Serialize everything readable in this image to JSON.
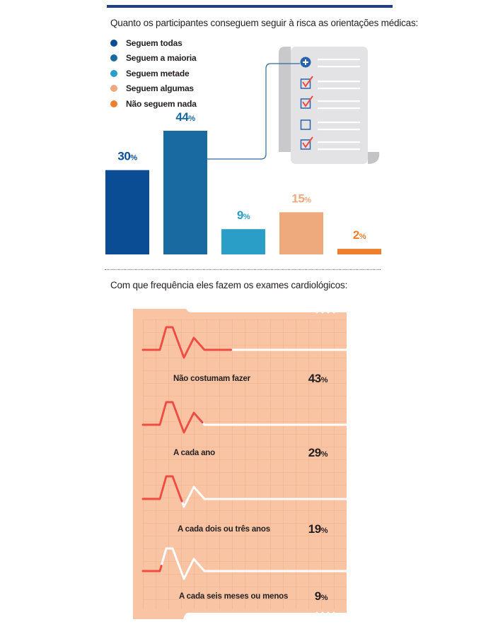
{
  "chart_data": [
    {
      "type": "bar",
      "title": "Quanto os participantes conseguem seguir à risca as orientações médicas:",
      "categories": [
        "Seguem todas",
        "Seguem a maioria",
        "Seguem metade",
        "Seguem algumas",
        "Não seguem nada"
      ],
      "values": [
        30,
        44,
        9,
        15,
        2
      ],
      "value_labels": [
        "30",
        "44",
        "9",
        "15",
        "2"
      ],
      "unit": "%",
      "colors": [
        "#0a4d94",
        "#1a6aa2",
        "#2a9ec7",
        "#eea97c",
        "#ee7f2c"
      ],
      "legend_position": "top-left",
      "ylim": [
        0,
        44
      ],
      "grid": false
    },
    {
      "type": "bar",
      "title": "Com que frequência eles fazem os exames cardiológicos:",
      "categories": [
        "Não costumam fazer",
        "A cada ano",
        "A cada dois ou três anos",
        "A cada seis meses ou menos"
      ],
      "values": [
        43,
        29,
        19,
        9
      ],
      "value_labels": [
        "43",
        "29",
        "19",
        "9"
      ],
      "unit": "%",
      "colors": [
        "#ef4d43"
      ],
      "grid": true
    }
  ],
  "icons": {
    "clipboard": "checklist-document-icon",
    "plus": "plus-circle-icon",
    "check": "checkbox-checked-icon",
    "empty": "checkbox-empty-icon"
  },
  "colors": {
    "rule": "#1e3f8c",
    "ecg_paper": "#f9c4a3",
    "ecg_grid": "#f0a983",
    "ecg_trace": "#ef4d43",
    "connector": "#2a6aa5"
  }
}
